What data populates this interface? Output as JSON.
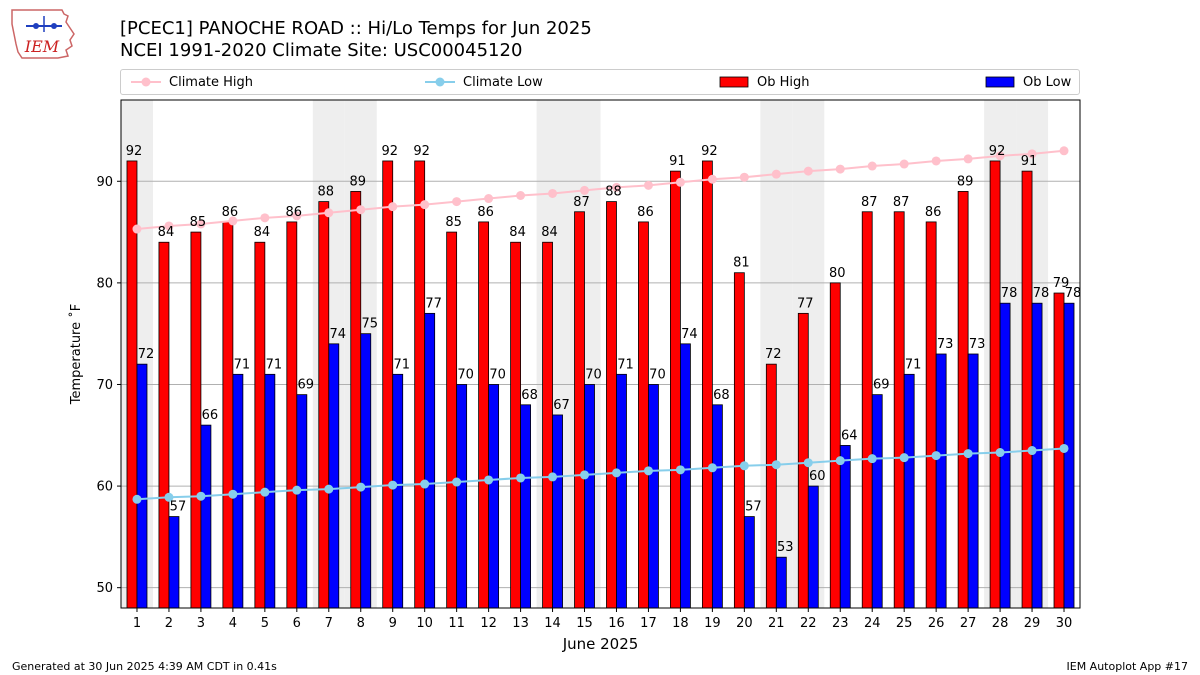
{
  "header": {
    "title_line1": "[PCEC1] PANOCHE ROAD :: Hi/Lo Temps for Jun 2025",
    "title_line2": "NCEI 1991-2020 Climate Site: USC00045120",
    "logo_text": "IEM"
  },
  "footer": {
    "left": "Generated at 30 Jun 2025 4:39 AM CDT in 0.41s",
    "right": "IEM Autoplot App #17"
  },
  "colors": {
    "ob_high": "#ff0000",
    "ob_low": "#0000ff",
    "climate_high": "#ffc0cb",
    "climate_low": "#87ceeb",
    "weekend_shade": "#eeeeee",
    "grid": "#b0b0b0"
  },
  "chart_data": {
    "type": "bar",
    "title": "[PCEC1] PANOCHE ROAD :: Hi/Lo Temps for Jun 2025",
    "subtitle": "NCEI 1991-2020 Climate Site: USC00045120",
    "xlabel": "June 2025",
    "ylabel": "Temperature ˚F",
    "categories": [
      "1",
      "2",
      "3",
      "4",
      "5",
      "6",
      "7",
      "8",
      "9",
      "10",
      "11",
      "12",
      "13",
      "14",
      "15",
      "16",
      "17",
      "18",
      "19",
      "20",
      "21",
      "22",
      "23",
      "24",
      "25",
      "26",
      "27",
      "28",
      "29",
      "30"
    ],
    "yticks": [
      50,
      60,
      70,
      80,
      90
    ],
    "ylim": [
      48,
      98
    ],
    "grid": "horizontal",
    "legend_position": "top",
    "shaded_days": [
      1,
      7,
      8,
      14,
      15,
      21,
      22,
      28,
      29
    ],
    "series": [
      {
        "name": "Climate High",
        "type": "line",
        "values": [
          85.3,
          85.6,
          85.8,
          86.1,
          86.4,
          86.6,
          86.9,
          87.2,
          87.5,
          87.7,
          88.0,
          88.3,
          88.6,
          88.8,
          89.1,
          89.4,
          89.6,
          89.9,
          90.2,
          90.4,
          90.7,
          91.0,
          91.2,
          91.5,
          91.7,
          92.0,
          92.2,
          92.5,
          92.7,
          93.0
        ]
      },
      {
        "name": "Climate Low",
        "type": "line",
        "values": [
          58.7,
          58.9,
          59.0,
          59.2,
          59.4,
          59.6,
          59.7,
          59.9,
          60.1,
          60.2,
          60.4,
          60.6,
          60.8,
          60.9,
          61.1,
          61.3,
          61.5,
          61.6,
          61.8,
          62.0,
          62.1,
          62.3,
          62.5,
          62.7,
          62.8,
          63.0,
          63.2,
          63.3,
          63.5,
          63.7
        ]
      },
      {
        "name": "Ob High",
        "type": "bar",
        "values": [
          92,
          84,
          85,
          86,
          84,
          86,
          88,
          89,
          92,
          92,
          85,
          86,
          84,
          84,
          87,
          88,
          86,
          91,
          92,
          81,
          72,
          77,
          80,
          87,
          87,
          86,
          89,
          92,
          91,
          79
        ]
      },
      {
        "name": "Ob Low",
        "type": "bar",
        "values": [
          72,
          57,
          66,
          71,
          71,
          69,
          74,
          75,
          71,
          77,
          70,
          70,
          68,
          67,
          70,
          71,
          70,
          74,
          68,
          57,
          53,
          60,
          64,
          69,
          71,
          73,
          73,
          78,
          78,
          78
        ]
      }
    ]
  }
}
